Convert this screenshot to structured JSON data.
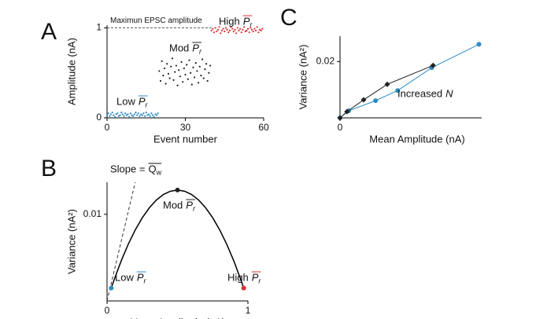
{
  "chart_data": [
    {
      "type": "scatter",
      "label": "A",
      "xlabel": "Event number",
      "ylabel": "Amplitude (nA)",
      "xlim": [
        0,
        60
      ],
      "ylim": [
        0,
        1.03
      ],
      "xticks": [
        0,
        30,
        60
      ],
      "yticks": [
        0,
        1
      ],
      "reference_line": {
        "y": 1,
        "label": "Maximun EPSC amplitude"
      },
      "series": [
        {
          "name": "Low",
          "symbol": "P",
          "subscript": "r",
          "color": "#2b8cc4",
          "x": [
            0,
            0.5,
            1,
            1.5,
            2,
            2.5,
            3,
            3.5,
            4,
            4.5,
            5,
            5.5,
            6,
            6.5,
            7,
            7.5,
            8,
            8.5,
            9,
            9.5,
            10,
            10.5,
            11,
            11.5,
            12,
            12.5,
            13,
            13.5,
            14,
            14.5,
            15,
            15.5,
            16,
            16.5,
            17,
            17.5,
            18,
            18.5,
            19,
            19.5
          ],
          "values": [
            0.03,
            0.05,
            0.02,
            0.04,
            0.06,
            0.03,
            0.01,
            0.04,
            0.05,
            0.02,
            0.03,
            0.06,
            0.04,
            0.02,
            0.05,
            0.03,
            0.04,
            0.01,
            0.05,
            0.03,
            0.02,
            0.04,
            0.06,
            0.03,
            0.05,
            0.02,
            0.04,
            0.03,
            0.05,
            0.02,
            0.06,
            0.03,
            0.04,
            0.02,
            0.05,
            0.03,
            0.01,
            0.04,
            0.03,
            0.05
          ]
        },
        {
          "name": "Mod",
          "symbol": "P",
          "subscript": "r",
          "color": "#222222",
          "x": [
            20,
            20.5,
            21,
            21.5,
            22,
            22.5,
            23,
            23.5,
            24,
            24.5,
            25,
            25.5,
            26,
            26.5,
            27,
            27.5,
            28,
            28.5,
            29,
            29.5,
            30,
            30.5,
            31,
            31.5,
            32,
            32.5,
            33,
            33.5,
            34,
            34.5,
            35,
            35.5,
            36,
            36.5,
            37,
            37.5,
            38,
            38.5,
            39,
            39.5
          ],
          "values": [
            0.52,
            0.41,
            0.63,
            0.47,
            0.55,
            0.38,
            0.6,
            0.49,
            0.44,
            0.57,
            0.66,
            0.42,
            0.51,
            0.58,
            0.36,
            0.53,
            0.46,
            0.62,
            0.4,
            0.55,
            0.48,
            0.59,
            0.43,
            0.64,
            0.5,
            0.37,
            0.56,
            0.45,
            0.61,
            0.52,
            0.39,
            0.57,
            0.47,
            0.65,
            0.44,
            0.54,
            0.6,
            0.41,
            0.5,
            0.58
          ]
        },
        {
          "name": "High",
          "symbol": "P",
          "subscript": "r",
          "color": "#d9312f",
          "x": [
            40,
            40.5,
            41,
            41.5,
            42,
            42.5,
            43,
            43.5,
            44,
            44.5,
            45,
            45.5,
            46,
            46.5,
            47,
            47.5,
            48,
            48.5,
            49,
            49.5,
            50,
            50.5,
            51,
            51.5,
            52,
            52.5,
            53,
            53.5,
            54,
            54.5,
            55,
            55.5,
            56,
            56.5,
            57,
            57.5,
            58,
            58.5,
            59,
            59.5
          ],
          "values": [
            0.97,
            0.99,
            0.95,
            1.0,
            0.96,
            0.98,
            1.01,
            0.94,
            0.97,
            0.99,
            0.96,
            1.0,
            0.98,
            0.95,
            0.97,
            1.01,
            0.99,
            0.96,
            0.98,
            0.94,
            1.0,
            0.97,
            0.99,
            0.95,
            0.98,
            1.01,
            0.96,
            0.97,
            0.99,
            0.95,
            1.0,
            0.98,
            0.96,
            0.99,
            0.97,
            1.01,
            0.95,
            0.98,
            0.97,
            0.99
          ]
        }
      ]
    },
    {
      "type": "line",
      "label": "B",
      "xlabel": "Mean Amplitude (nA)",
      "ylabel": "Variance (nA²)",
      "xlim": [
        0,
        1
      ],
      "ylim": [
        0,
        0.0137
      ],
      "xticks": [
        0,
        1
      ],
      "yticks": [
        0.01
      ],
      "color": "#000000",
      "x": [
        0.03,
        0.05,
        0.1,
        0.15,
        0.2,
        0.25,
        0.3,
        0.35,
        0.4,
        0.45,
        0.5,
        0.55,
        0.6,
        0.65,
        0.7,
        0.75,
        0.8,
        0.85,
        0.9,
        0.95,
        0.97
      ],
      "values": [
        0.00149,
        0.00243,
        0.00461,
        0.00653,
        0.00819,
        0.0096,
        0.01075,
        0.01165,
        0.01229,
        0.01267,
        0.0128,
        0.01267,
        0.01229,
        0.01165,
        0.01075,
        0.0096,
        0.00819,
        0.00653,
        0.00461,
        0.00243,
        0.00149
      ],
      "slope_line": {
        "label": "Slope =",
        "symbol": "Q",
        "subscript": "w",
        "x": [
          0,
          0.2
        ],
        "values": [
          0,
          0.0137
        ]
      },
      "points": [
        {
          "name": "Low",
          "symbol": "P",
          "subscript": "r",
          "color": "#2b8cc4",
          "x": 0.03,
          "value": 0.00149
        },
        {
          "name": "Mod",
          "symbol": "P",
          "subscript": "r",
          "color": "#222222",
          "x": 0.5,
          "value": 0.0128
        },
        {
          "name": "High",
          "symbol": "P",
          "subscript": "r",
          "color": "#d9312f",
          "x": 0.97,
          "value": 0.00149
        }
      ]
    },
    {
      "type": "line",
      "label": "C",
      "xlabel": "Mean Amplitude (nA)",
      "ylabel": "Variance (nA²)",
      "xlim": [
        0,
        1.02
      ],
      "ylim": [
        0,
        0.029
      ],
      "xticks": [
        0
      ],
      "yticks": [
        0.02
      ],
      "annotation": {
        "text": "Increased",
        "symbol": "N"
      },
      "series": [
        {
          "color": "#2b8cc4",
          "marker": "circle",
          "x": [
            0,
            0.0625,
            0.256,
            0.415,
            0.66,
            1.0
          ],
          "values": [
            0,
            0.0025,
            0.0061,
            0.0097,
            0.0178,
            0.0261
          ]
        },
        {
          "color": "#222222",
          "marker": "diamond",
          "x": [
            0,
            0.05,
            0.17,
            0.34,
            0.67
          ],
          "values": [
            0,
            0.0022,
            0.0064,
            0.0119,
            0.0186
          ]
        }
      ]
    }
  ]
}
